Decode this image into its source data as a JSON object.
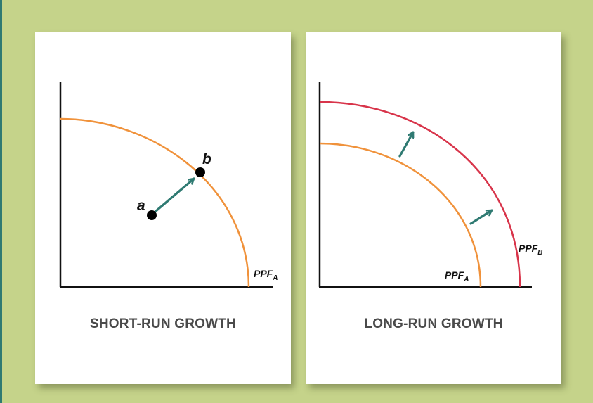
{
  "panels": [
    {
      "caption": "SHORT-RUN GROWTH",
      "curve_labels": [
        {
          "name": "PPF",
          "subscript": "A",
          "color": "#f0923b"
        }
      ],
      "points": [
        {
          "label": "a"
        },
        {
          "label": "b"
        }
      ]
    },
    {
      "caption": "LONG-RUN GROWTH",
      "curve_labels": [
        {
          "name": "PPF",
          "subscript": "A",
          "color": "#f0923b"
        },
        {
          "name": "PPF",
          "subscript": "B",
          "color": "#d8344a"
        }
      ]
    }
  ],
  "colors": {
    "background": "#c5d38a",
    "arrow": "#2f7a72",
    "axis": "#111111",
    "caption": "#4a4a4a"
  }
}
